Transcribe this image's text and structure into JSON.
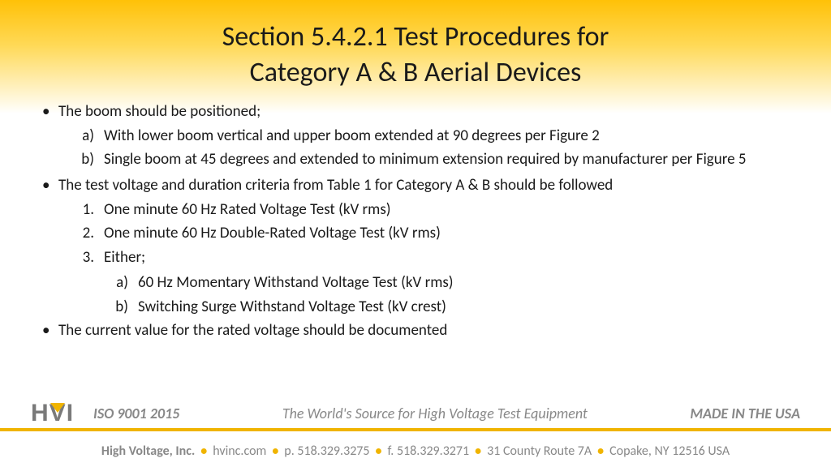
{
  "title_line1": "Section 5.4.2.1 Test Procedures for",
  "title_line2": "Category A & B Aerial Devices",
  "bullets": {
    "b1": "The boom should be positioned;",
    "b1_a": "With lower boom vertical and upper boom extended at 90 degrees per Figure 2",
    "b1_b": "Single boom at 45 degrees and extended to minimum extension required by manufacturer per Figure 5",
    "b2": "The test voltage and duration criteria from Table 1 for Category A & B should be followed",
    "b2_1": "One minute 60 Hz Rated Voltage Test (kV rms)",
    "b2_2": "One minute 60 Hz Double-Rated Voltage Test (kV rms)",
    "b2_3": "Either;",
    "b2_3_a": "60 Hz Momentary Withstand Voltage Test (kV rms)",
    "b2_3_b": "Switching Surge Withstand Voltage Test (kV crest)",
    "b3": "The current value for the rated voltage should be documented"
  },
  "footer": {
    "iso": "ISO 9001 2015",
    "tagline": "The World's Source for High Voltage Test Equipment",
    "made": "MADE IN THE USA",
    "company": "High Voltage, Inc.",
    "web": "hvinc.com",
    "phone": "p. 518.329.3275",
    "fax": "f. 518.329.3271",
    "addr1": "31 County Route 7A",
    "addr2": "Copake, NY 12516 USA"
  },
  "colors": {
    "gradient_top": "#ffc107",
    "accent": "#f0b400",
    "text": "#1a1a1a",
    "muted": "#888888"
  }
}
